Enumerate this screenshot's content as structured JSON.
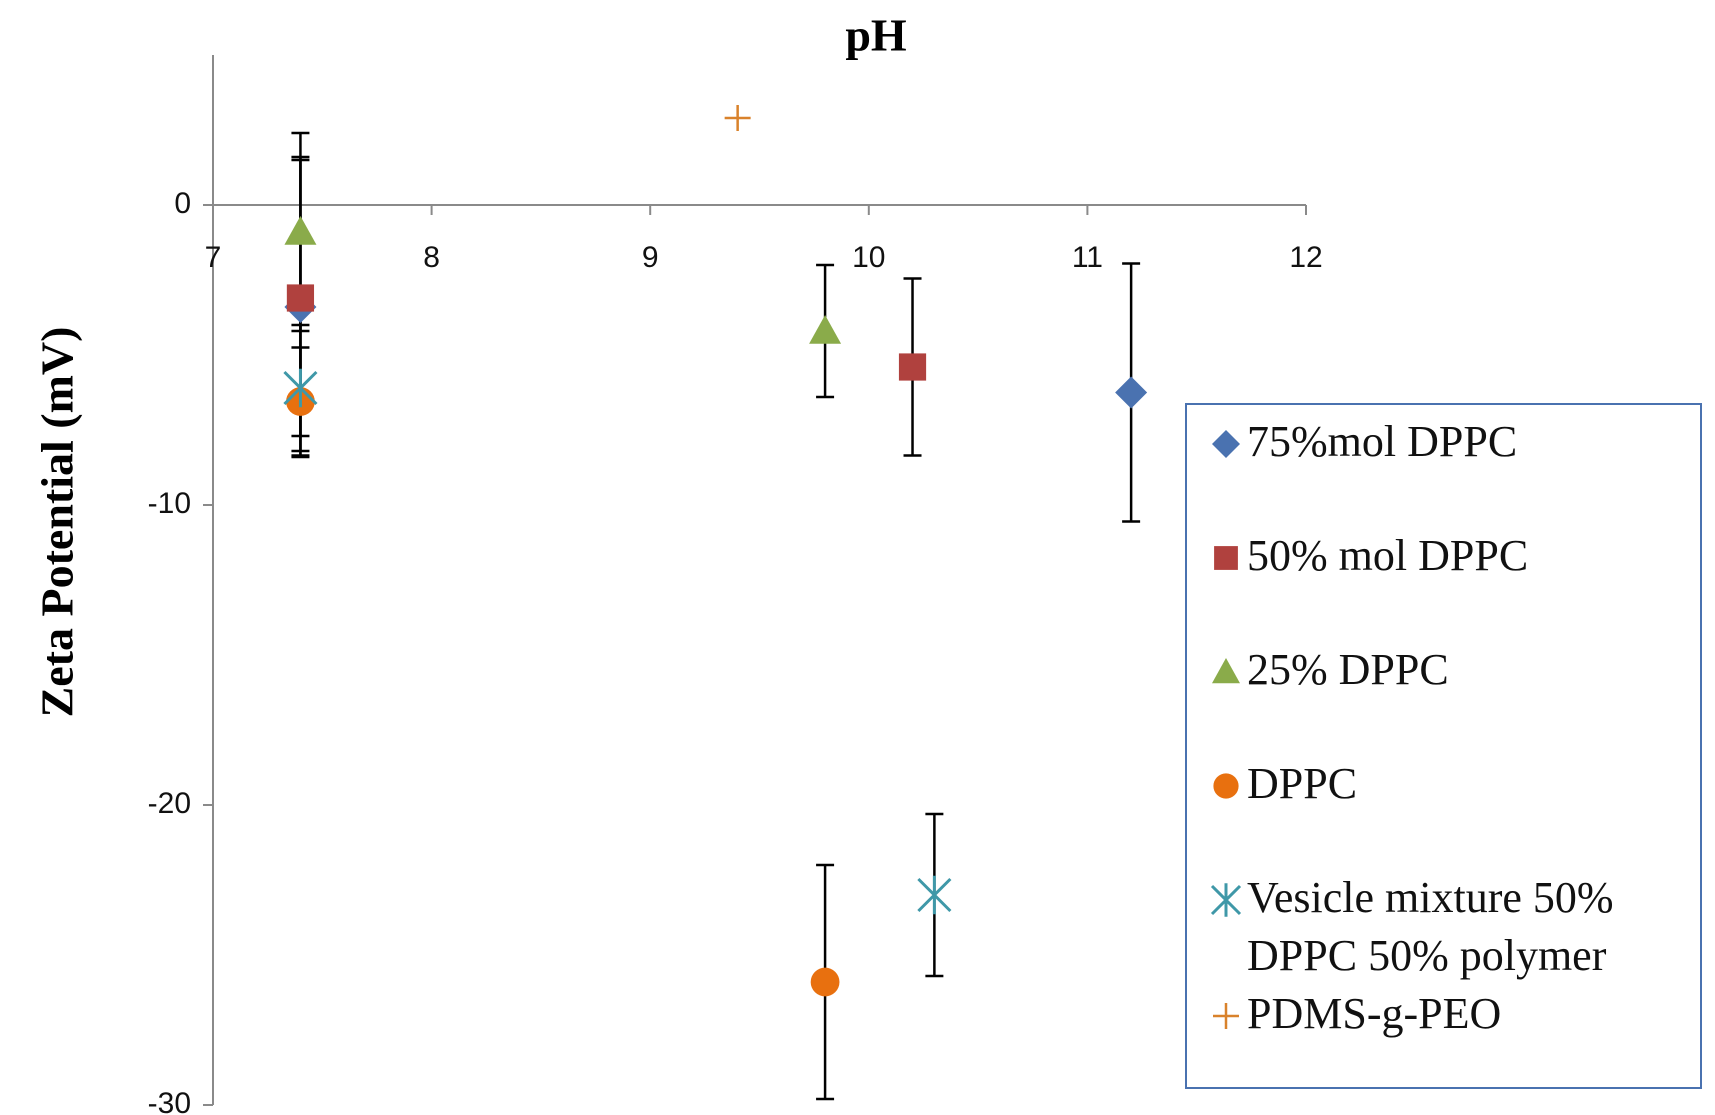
{
  "chart_data": {
    "type": "scatter",
    "title": "pH",
    "y_label": "Zeta Potential (mV)",
    "xlim": [
      7,
      12
    ],
    "xticks": [
      7,
      8,
      9,
      10,
      11,
      12
    ],
    "ylim": [
      -30,
      5
    ],
    "yticks": [
      -30,
      -20,
      -10,
      0
    ],
    "series": [
      {
        "name": "75%mol DPPC",
        "color": "#4a72b0",
        "marker": "diamond",
        "x": [
          7.4,
          11.2
        ],
        "values": [
          -3.4,
          -6.25
        ],
        "errors": [
          5.0,
          4.3
        ]
      },
      {
        "name": "50% mol DPPC",
        "color": "#b0413e",
        "marker": "square",
        "x": [
          7.4,
          10.2
        ],
        "values": [
          -3.1,
          -5.4
        ],
        "errors": [
          4.6,
          2.95
        ]
      },
      {
        "name": "25% DPPC",
        "color": "#8aab4a",
        "marker": "triangle",
        "x": [
          7.4,
          9.8
        ],
        "values": [
          -0.9,
          -4.2
        ],
        "errors": [
          3.3,
          2.2
        ]
      },
      {
        "name": "DPPC",
        "color": "#e8700f",
        "marker": "circle",
        "x": [
          7.4,
          9.8
        ],
        "values": [
          -6.55,
          -25.9
        ],
        "errors": [
          1.8,
          3.9
        ]
      },
      {
        "name": "Vesicle mixture 50% DPPC 50% polymer",
        "color": "#3f98a8",
        "marker": "star",
        "x": [
          7.4,
          10.3
        ],
        "values": [
          -6.1,
          -23.0
        ],
        "errors": [
          2.1,
          2.7
        ]
      },
      {
        "name": "PDMS-g-PEO",
        "color": "#d9822b",
        "marker": "plus",
        "x": [
          9.4
        ],
        "values": [
          2.9
        ]
      }
    ]
  }
}
